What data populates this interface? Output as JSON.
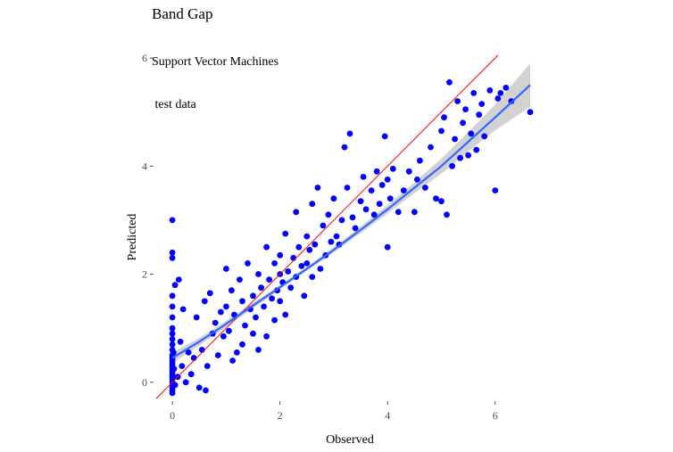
{
  "chart_data": {
    "type": "scatter",
    "title": "Band Gap",
    "subtitle_lines": [
      "Support Vector Machines",
      " test data"
    ],
    "xlabel": "Observed",
    "ylabel": "Predicted",
    "xlim": [
      -0.35,
      6.75
    ],
    "ylim": [
      -0.35,
      6.05
    ],
    "xticks": [
      0,
      2,
      4,
      6
    ],
    "yticks": [
      0,
      2,
      4,
      6
    ],
    "grid": false,
    "colors": {
      "points": "#0000ff",
      "identity_line": "#ff0000",
      "fit_line": "#3366ff",
      "ribbon": "#bfbfbf"
    },
    "identity_line": {
      "from": [
        -0.3,
        -0.3
      ],
      "to": [
        6.05,
        6.05
      ]
    },
    "fit": {
      "x": [
        0.0,
        0.5,
        1.0,
        1.5,
        2.0,
        2.5,
        3.0,
        3.5,
        4.0,
        4.5,
        5.0,
        5.5,
        6.0,
        6.65
      ],
      "y": [
        0.45,
        0.75,
        1.08,
        1.42,
        1.76,
        2.1,
        2.45,
        2.82,
        3.2,
        3.6,
        4.0,
        4.45,
        4.9,
        5.5
      ],
      "lower": [
        0.35,
        0.68,
        1.02,
        1.37,
        1.72,
        2.06,
        2.4,
        2.76,
        3.12,
        3.5,
        3.86,
        4.27,
        4.66,
        5.1
      ],
      "upper": [
        0.55,
        0.82,
        1.14,
        1.47,
        1.8,
        2.14,
        2.5,
        2.88,
        3.28,
        3.7,
        4.14,
        4.63,
        5.14,
        5.9
      ]
    },
    "points": [
      [
        0,
        3.0
      ],
      [
        0,
        2.4
      ],
      [
        0,
        2.3
      ],
      [
        0,
        1.6
      ],
      [
        0,
        1.4
      ],
      [
        0,
        1.2
      ],
      [
        0,
        1.0
      ],
      [
        0,
        0.9
      ],
      [
        0,
        0.8
      ],
      [
        0,
        0.7
      ],
      [
        0,
        0.6
      ],
      [
        0,
        0.5
      ],
      [
        0,
        0.45
      ],
      [
        0,
        0.4
      ],
      [
        0,
        0.35
      ],
      [
        0,
        0.3
      ],
      [
        0,
        0.25
      ],
      [
        0,
        0.2
      ],
      [
        0,
        0.15
      ],
      [
        0,
        0.1
      ],
      [
        0,
        0.05
      ],
      [
        0,
        0.0
      ],
      [
        0,
        -0.05
      ],
      [
        0,
        -0.1
      ],
      [
        0,
        -0.15
      ],
      [
        0,
        -0.2
      ],
      [
        0.02,
        0.55
      ],
      [
        0.03,
        0.25
      ],
      [
        0.05,
        1.8
      ],
      [
        0.05,
        -0.05
      ],
      [
        0.1,
        0.1
      ],
      [
        0.12,
        1.9
      ],
      [
        0.15,
        0.75
      ],
      [
        0.18,
        0.3
      ],
      [
        0.2,
        1.35
      ],
      [
        0.25,
        0.0
      ],
      [
        0.3,
        0.55
      ],
      [
        0.35,
        0.15
      ],
      [
        0.4,
        0.45
      ],
      [
        0.45,
        1.2
      ],
      [
        0.5,
        -0.1
      ],
      [
        0.55,
        0.6
      ],
      [
        0.6,
        1.5
      ],
      [
        0.62,
        -0.15
      ],
      [
        0.65,
        0.3
      ],
      [
        0.7,
        1.65
      ],
      [
        0.75,
        0.9
      ],
      [
        0.8,
        1.1
      ],
      [
        0.85,
        0.5
      ],
      [
        0.9,
        1.3
      ],
      [
        0.95,
        0.85
      ],
      [
        1.0,
        2.1
      ],
      [
        1.0,
        1.4
      ],
      [
        1.05,
        0.95
      ],
      [
        1.1,
        1.7
      ],
      [
        1.12,
        0.4
      ],
      [
        1.15,
        1.25
      ],
      [
        1.2,
        0.55
      ],
      [
        1.25,
        1.9
      ],
      [
        1.3,
        1.5
      ],
      [
        1.3,
        0.7
      ],
      [
        1.35,
        1.05
      ],
      [
        1.4,
        2.2
      ],
      [
        1.45,
        1.35
      ],
      [
        1.5,
        0.9
      ],
      [
        1.5,
        1.6
      ],
      [
        1.55,
        1.2
      ],
      [
        1.6,
        2.0
      ],
      [
        1.6,
        0.6
      ],
      [
        1.65,
        1.75
      ],
      [
        1.7,
        1.4
      ],
      [
        1.75,
        2.5
      ],
      [
        1.75,
        0.85
      ],
      [
        1.8,
        1.9
      ],
      [
        1.85,
        1.55
      ],
      [
        1.9,
        2.2
      ],
      [
        1.9,
        1.15
      ],
      [
        1.95,
        1.7
      ],
      [
        2.0,
        2.35
      ],
      [
        2.0,
        2.0
      ],
      [
        2.0,
        1.5
      ],
      [
        2.05,
        1.85
      ],
      [
        2.1,
        2.75
      ],
      [
        2.1,
        1.25
      ],
      [
        2.15,
        2.05
      ],
      [
        2.2,
        1.75
      ],
      [
        2.25,
        2.3
      ],
      [
        2.3,
        1.95
      ],
      [
        2.3,
        3.15
      ],
      [
        2.35,
        2.5
      ],
      [
        2.4,
        2.15
      ],
      [
        2.45,
        1.6
      ],
      [
        2.5,
        2.7
      ],
      [
        2.5,
        2.2
      ],
      [
        2.55,
        2.45
      ],
      [
        2.6,
        3.3
      ],
      [
        2.6,
        1.95
      ],
      [
        2.65,
        2.55
      ],
      [
        2.7,
        3.6
      ],
      [
        2.75,
        2.1
      ],
      [
        2.8,
        2.9
      ],
      [
        2.85,
        2.35
      ],
      [
        2.9,
        3.1
      ],
      [
        2.95,
        2.6
      ],
      [
        3.0,
        3.4
      ],
      [
        3.05,
        2.7
      ],
      [
        3.1,
        2.55
      ],
      [
        3.15,
        3.0
      ],
      [
        3.2,
        4.35
      ],
      [
        3.25,
        3.6
      ],
      [
        3.3,
        4.6
      ],
      [
        3.35,
        3.05
      ],
      [
        3.4,
        2.85
      ],
      [
        3.5,
        3.35
      ],
      [
        3.55,
        3.8
      ],
      [
        3.6,
        3.2
      ],
      [
        3.7,
        3.55
      ],
      [
        3.75,
        3.1
      ],
      [
        3.8,
        3.9
      ],
      [
        3.85,
        3.3
      ],
      [
        3.9,
        3.65
      ],
      [
        3.95,
        4.55
      ],
      [
        4.0,
        2.5
      ],
      [
        4.0,
        3.75
      ],
      [
        4.05,
        3.4
      ],
      [
        4.1,
        3.95
      ],
      [
        4.2,
        3.15
      ],
      [
        4.3,
        3.55
      ],
      [
        4.4,
        3.9
      ],
      [
        4.5,
        3.15
      ],
      [
        4.55,
        3.75
      ],
      [
        4.6,
        4.1
      ],
      [
        4.7,
        3.6
      ],
      [
        4.8,
        4.35
      ],
      [
        4.9,
        3.4
      ],
      [
        5.0,
        4.65
      ],
      [
        5.0,
        3.35
      ],
      [
        5.05,
        4.9
      ],
      [
        5.1,
        3.1
      ],
      [
        5.15,
        5.55
      ],
      [
        5.2,
        4.0
      ],
      [
        5.25,
        4.5
      ],
      [
        5.3,
        5.2
      ],
      [
        5.35,
        4.15
      ],
      [
        5.4,
        4.8
      ],
      [
        5.45,
        5.05
      ],
      [
        5.5,
        4.2
      ],
      [
        5.55,
        4.6
      ],
      [
        5.6,
        5.35
      ],
      [
        5.65,
        4.3
      ],
      [
        5.7,
        4.95
      ],
      [
        5.75,
        5.15
      ],
      [
        5.8,
        4.55
      ],
      [
        5.9,
        5.4
      ],
      [
        6.0,
        3.55
      ],
      [
        6.05,
        5.25
      ],
      [
        6.1,
        5.35
      ],
      [
        6.2,
        5.45
      ],
      [
        6.3,
        5.2
      ],
      [
        6.65,
        5.0
      ]
    ]
  }
}
